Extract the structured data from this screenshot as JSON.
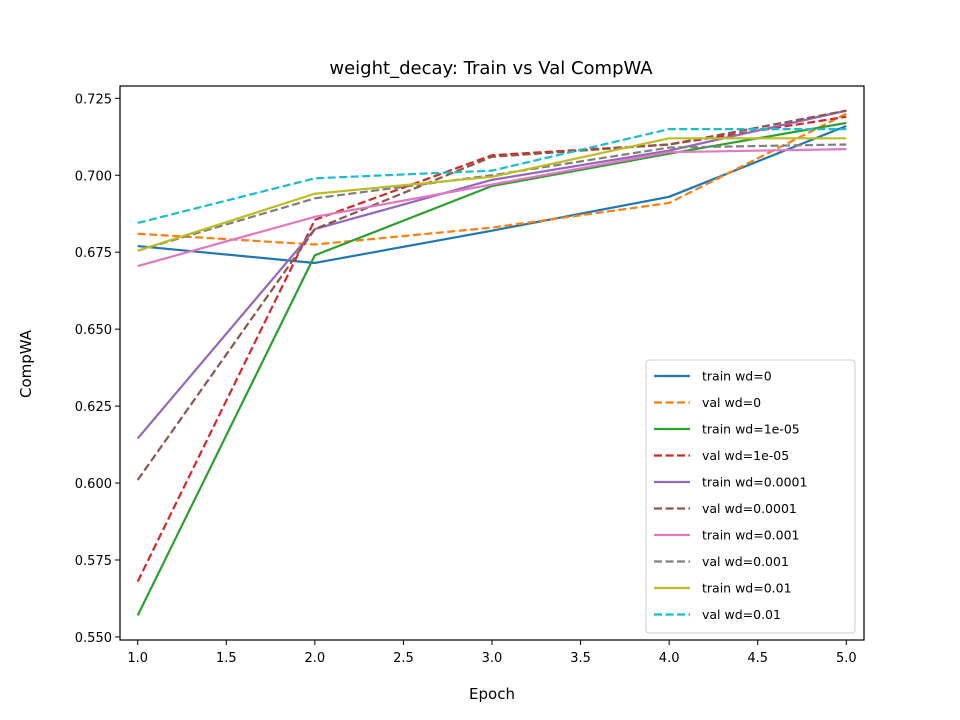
{
  "chart_data": {
    "type": "line",
    "title": "weight_decay: Train vs Val CompWA",
    "xlabel": "Epoch",
    "ylabel": "CompWA",
    "xlim": [
      0.9,
      5.1
    ],
    "ylim": [
      0.549,
      0.729
    ],
    "x_ticks": [
      1.0,
      1.5,
      2.0,
      2.5,
      3.0,
      3.5,
      4.0,
      4.5,
      5.0
    ],
    "x_tick_labels": [
      "1.0",
      "1.5",
      "2.0",
      "2.5",
      "3.0",
      "3.5",
      "4.0",
      "4.5",
      "5.0"
    ],
    "y_ticks": [
      0.55,
      0.575,
      0.6,
      0.625,
      0.65,
      0.675,
      0.7,
      0.725
    ],
    "y_tick_labels": [
      "0.550",
      "0.575",
      "0.600",
      "0.625",
      "0.650",
      "0.675",
      "0.700",
      "0.725"
    ],
    "grid": false,
    "legend_position": "lower-right",
    "x": [
      1,
      2,
      3,
      4,
      5
    ],
    "series": [
      {
        "name": "train wd=0",
        "color": "#1f77b4",
        "dash": "solid",
        "values": [
          0.677,
          0.6715,
          0.682,
          0.693,
          0.716
        ]
      },
      {
        "name": "val wd=0",
        "color": "#ff7f0e",
        "dash": "dashed",
        "values": [
          0.681,
          0.6775,
          0.683,
          0.691,
          0.72
        ]
      },
      {
        "name": "train wd=1e-05",
        "color": "#2ca02c",
        "dash": "solid",
        "values": [
          0.557,
          0.674,
          0.6965,
          0.707,
          0.717
        ]
      },
      {
        "name": "val wd=1e-05",
        "color": "#d62728",
        "dash": "dashed",
        "values": [
          0.568,
          0.6855,
          0.7065,
          0.71,
          0.719
        ]
      },
      {
        "name": "train wd=0.0001",
        "color": "#9467bd",
        "dash": "solid",
        "values": [
          0.6145,
          0.6825,
          0.6985,
          0.708,
          0.721
        ]
      },
      {
        "name": "val wd=0.0001",
        "color": "#8c564b",
        "dash": "dashed",
        "values": [
          0.601,
          0.6825,
          0.706,
          0.71,
          0.721
        ]
      },
      {
        "name": "train wd=0.001",
        "color": "#e377c2",
        "dash": "solid",
        "values": [
          0.6705,
          0.6865,
          0.697,
          0.7075,
          0.7085
        ]
      },
      {
        "name": "val wd=0.001",
        "color": "#7f7f7f",
        "dash": "dashed",
        "values": [
          0.6755,
          0.6925,
          0.7,
          0.709,
          0.71
        ]
      },
      {
        "name": "train wd=0.01",
        "color": "#bcbd22",
        "dash": "solid",
        "values": [
          0.6755,
          0.694,
          0.6995,
          0.712,
          0.712
        ]
      },
      {
        "name": "val wd=0.01",
        "color": "#17becf",
        "dash": "dashed",
        "values": [
          0.6845,
          0.699,
          0.7015,
          0.715,
          0.715
        ]
      }
    ]
  }
}
